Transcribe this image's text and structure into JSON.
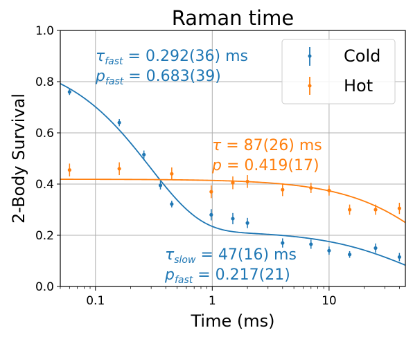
{
  "colors": {
    "cold": "#1f77b4",
    "hot": "#ff7f0e",
    "grid": "#b0b0b0"
  },
  "chart_data": {
    "type": "scatter",
    "title": "Raman time",
    "xlabel": "Time (ms)",
    "ylabel": "2-Body Survival",
    "xscale": "log",
    "xlim": [
      0.05,
      45
    ],
    "ylim": [
      0,
      1.0
    ],
    "grid": true,
    "legend_position": "top-right",
    "x_ticks": [
      {
        "value": 0.1,
        "label": "0.1"
      },
      {
        "value": 1,
        "label": "1"
      },
      {
        "value": 10,
        "label": "10"
      }
    ],
    "y_ticks": [
      {
        "value": 0,
        "label": "0.0"
      },
      {
        "value": 0.2,
        "label": "0.2"
      },
      {
        "value": 0.4,
        "label": "0.4"
      },
      {
        "value": 0.6,
        "label": "0.6"
      },
      {
        "value": 0.8,
        "label": "0.8"
      },
      {
        "value": 1.0,
        "label": "1.0"
      }
    ],
    "series": [
      {
        "name": "Cold",
        "color": "#1f77b4",
        "points": [
          {
            "x": 0.06,
            "y": 0.76,
            "err": 0.012
          },
          {
            "x": 0.16,
            "y": 0.64,
            "err": 0.014
          },
          {
            "x": 0.26,
            "y": 0.515,
            "err": 0.016
          },
          {
            "x": 0.36,
            "y": 0.395,
            "err": 0.016
          },
          {
            "x": 0.45,
            "y": 0.322,
            "err": 0.013
          },
          {
            "x": 0.98,
            "y": 0.28,
            "err": 0.022
          },
          {
            "x": 1.5,
            "y": 0.265,
            "err": 0.022
          },
          {
            "x": 2.0,
            "y": 0.248,
            "err": 0.02
          },
          {
            "x": 4.0,
            "y": 0.17,
            "err": 0.018
          },
          {
            "x": 7.0,
            "y": 0.165,
            "err": 0.018
          },
          {
            "x": 10.0,
            "y": 0.14,
            "err": 0.016
          },
          {
            "x": 15.0,
            "y": 0.125,
            "err": 0.013
          },
          {
            "x": 25.0,
            "y": 0.15,
            "err": 0.018
          },
          {
            "x": 40.0,
            "y": 0.115,
            "err": 0.016
          }
        ],
        "fit": {
          "model": "biexponential",
          "tau_fast": 0.292,
          "p_fast": 0.683,
          "tau_slow": 47,
          "p_slow": 0.217
        }
      },
      {
        "name": "Hot",
        "color": "#ff7f0e",
        "points": [
          {
            "x": 0.06,
            "y": 0.455,
            "err": 0.025
          },
          {
            "x": 0.16,
            "y": 0.46,
            "err": 0.025
          },
          {
            "x": 0.45,
            "y": 0.44,
            "err": 0.025
          },
          {
            "x": 0.98,
            "y": 0.37,
            "err": 0.025
          },
          {
            "x": 1.5,
            "y": 0.405,
            "err": 0.025
          },
          {
            "x": 2.0,
            "y": 0.41,
            "err": 0.025
          },
          {
            "x": 4.0,
            "y": 0.378,
            "err": 0.025
          },
          {
            "x": 7.0,
            "y": 0.385,
            "err": 0.02
          },
          {
            "x": 10.0,
            "y": 0.375,
            "err": 0.02
          },
          {
            "x": 15.0,
            "y": 0.3,
            "err": 0.02
          },
          {
            "x": 25.0,
            "y": 0.3,
            "err": 0.02
          },
          {
            "x": 40.0,
            "y": 0.305,
            "err": 0.022
          }
        ],
        "fit": {
          "model": "exponential",
          "tau": 87,
          "p": 0.419
        }
      }
    ],
    "annotations": {
      "cold_fast": {
        "tau_sym": "τ",
        "tau_sub": "fast",
        "tau_value": " = 0.292(36) ms",
        "p_sym": "p",
        "p_sub": "fast",
        "p_value": " = 0.683(39)"
      },
      "hot": {
        "tau_sym": "τ",
        "tau_value": " = 87(26) ms",
        "p_sym": "p",
        "p_value": " = 0.419(17)"
      },
      "cold_slow": {
        "tau_sym": "τ",
        "tau_sub": "slow",
        "tau_value": " = 47(16) ms",
        "p_sym": "p",
        "p_sub": "fast",
        "p_value": " = 0.217(21)"
      }
    }
  }
}
